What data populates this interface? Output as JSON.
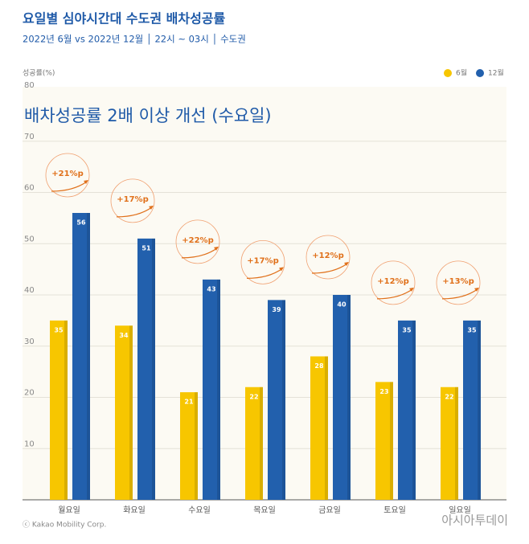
{
  "chart_data": {
    "type": "bar",
    "title": "요일별 심야시간대 수도권 배차성공률",
    "subtitle": "2022년 6월 vs 2022년 12월 │ 22시 ~ 03시 │ 수도권",
    "y_label": "성공률(%)",
    "headline": "배차성공률 2배 이상 개선 (수요일)",
    "categories": [
      "월요일",
      "화요일",
      "수요일",
      "목요일",
      "금요일",
      "토요일",
      "일요일"
    ],
    "series": [
      {
        "name": "6월",
        "color": "#f7c600",
        "values": [
          35,
          34,
          21,
          22,
          28,
          23,
          22
        ]
      },
      {
        "name": "12월",
        "color": "#2260ad",
        "values": [
          56,
          51,
          43,
          39,
          40,
          35,
          35
        ]
      }
    ],
    "annotations": [
      "+21%p",
      "+17%p",
      "+22%p",
      "+17%p",
      "+12%p",
      "+12%p",
      "+13%p"
    ],
    "ylim": [
      0,
      80
    ],
    "yticks": [
      10,
      20,
      30,
      40,
      50,
      60,
      70,
      80
    ],
    "grid": true,
    "source": "ⓒ Kakao Mobility Corp.",
    "watermark": "아시아투데이"
  }
}
